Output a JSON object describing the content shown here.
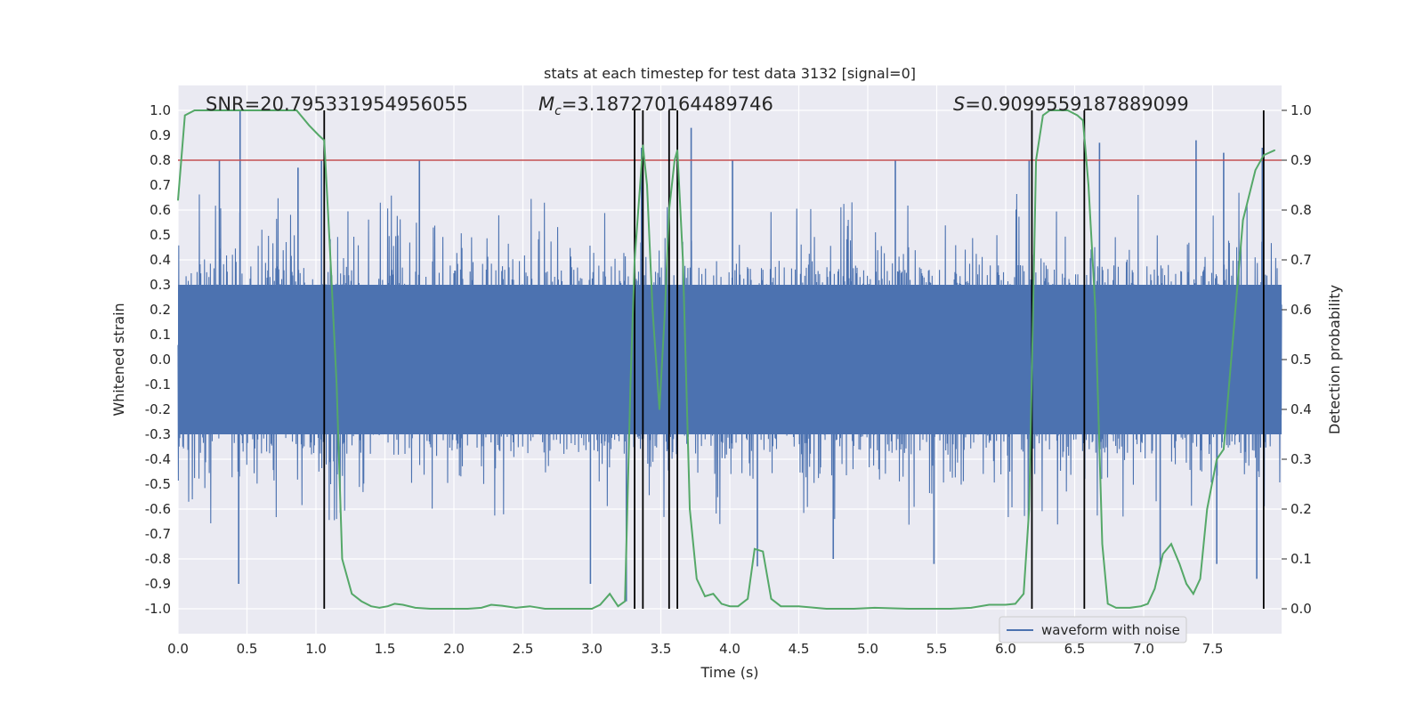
{
  "chart_data": {
    "type": "line",
    "title": "stats at each timestep for test data 3132 [signal=0]",
    "xlabel": "Time (s)",
    "ylabel": "Whitened strain",
    "y2label": "Detection probability",
    "xlim": [
      0,
      8
    ],
    "ylim": [
      -1.1,
      1.1
    ],
    "y2lim": [
      -0.05,
      1.05
    ],
    "xticks": [
      "0.0",
      "0.5",
      "1.0",
      "1.5",
      "2.0",
      "2.5",
      "3.0",
      "3.5",
      "4.0",
      "4.5",
      "5.0",
      "5.5",
      "6.0",
      "6.5",
      "7.0",
      "7.5"
    ],
    "yticks": [
      "-1.0",
      "-0.9",
      "-0.8",
      "-0.7",
      "-0.6",
      "-0.5",
      "-0.4",
      "-0.3",
      "-0.2",
      "-0.1",
      "0.0",
      "0.1",
      "0.2",
      "0.3",
      "0.4",
      "0.5",
      "0.6",
      "0.7",
      "0.8",
      "0.9",
      "1.0"
    ],
    "y2ticks": [
      "0.0",
      "0.1",
      "0.2",
      "0.3",
      "0.4",
      "0.5",
      "0.6",
      "0.7",
      "0.8",
      "0.9",
      "1.0"
    ],
    "grid": true,
    "legend": {
      "entries": [
        "waveform with noise"
      ],
      "placement": "lower-right"
    },
    "annotations": {
      "snr": "SNR=20.795331954956055",
      "mc_prefix": "M",
      "mc_sub": "c",
      "mc_value": "=3.187270164489746",
      "s_prefix": "S",
      "s_value": "=0.9099559187889099"
    },
    "threshold": {
      "axis": "detection probability",
      "value": 0.9
    },
    "vertical_markers": [
      1.06,
      3.31,
      3.37,
      3.56,
      3.62,
      6.19,
      6.57,
      7.87
    ],
    "series": [
      {
        "name": "waveform with noise",
        "axis": "left",
        "style": "noise band",
        "typical_envelope": [
          -0.4,
          0.4
        ],
        "peak_spikes": [
          [
            0.45,
            1.0
          ],
          [
            0.44,
            -0.9
          ],
          [
            0.3,
            0.8
          ],
          [
            0.87,
            0.77
          ],
          [
            1.04,
            0.8
          ],
          [
            1.75,
            0.8
          ],
          [
            3.36,
            0.85
          ],
          [
            3.72,
            0.93
          ],
          [
            4.02,
            0.8
          ],
          [
            5.2,
            0.8
          ],
          [
            6.17,
            0.8
          ],
          [
            6.68,
            0.87
          ],
          [
            7.38,
            0.88
          ],
          [
            7.58,
            0.83
          ],
          [
            7.86,
            0.85
          ],
          [
            3.25,
            -0.97
          ],
          [
            2.99,
            -0.9
          ],
          [
            4.2,
            -0.83
          ],
          [
            4.75,
            -0.8
          ],
          [
            5.48,
            -0.82
          ],
          [
            7.12,
            -0.83
          ],
          [
            7.53,
            -0.82
          ],
          [
            7.82,
            -0.88
          ]
        ]
      },
      {
        "name": "",
        "axis": "right",
        "color": "#55a868",
        "points": [
          [
            0.0,
            0.82
          ],
          [
            0.05,
            0.99
          ],
          [
            0.12,
            1.0
          ],
          [
            0.5,
            1.0
          ],
          [
            0.86,
            1.0
          ],
          [
            0.95,
            0.97
          ],
          [
            1.02,
            0.95
          ],
          [
            1.06,
            0.94
          ],
          [
            1.1,
            0.73
          ],
          [
            1.15,
            0.45
          ],
          [
            1.19,
            0.1
          ],
          [
            1.26,
            0.03
          ],
          [
            1.33,
            0.015
          ],
          [
            1.4,
            0.005
          ],
          [
            1.46,
            0.002
          ],
          [
            1.52,
            0.005
          ],
          [
            1.57,
            0.01
          ],
          [
            1.63,
            0.008
          ],
          [
            1.72,
            0.002
          ],
          [
            1.83,
            0.0
          ],
          [
            1.95,
            0.0
          ],
          [
            2.1,
            0.0
          ],
          [
            2.2,
            0.002
          ],
          [
            2.27,
            0.008
          ],
          [
            2.35,
            0.006
          ],
          [
            2.45,
            0.002
          ],
          [
            2.55,
            0.005
          ],
          [
            2.66,
            0.0
          ],
          [
            2.8,
            0.0
          ],
          [
            3.0,
            0.0
          ],
          [
            3.06,
            0.008
          ],
          [
            3.13,
            0.03
          ],
          [
            3.19,
            0.005
          ],
          [
            3.24,
            0.015
          ],
          [
            3.28,
            0.45
          ],
          [
            3.31,
            0.7
          ],
          [
            3.35,
            0.85
          ],
          [
            3.37,
            0.93
          ],
          [
            3.4,
            0.85
          ],
          [
            3.44,
            0.6
          ],
          [
            3.49,
            0.4
          ],
          [
            3.53,
            0.6
          ],
          [
            3.56,
            0.8
          ],
          [
            3.6,
            0.9
          ],
          [
            3.62,
            0.92
          ],
          [
            3.66,
            0.7
          ],
          [
            3.71,
            0.2
          ],
          [
            3.76,
            0.06
          ],
          [
            3.82,
            0.025
          ],
          [
            3.88,
            0.03
          ],
          [
            3.94,
            0.01
          ],
          [
            4.0,
            0.005
          ],
          [
            4.06,
            0.005
          ],
          [
            4.13,
            0.02
          ],
          [
            4.18,
            0.12
          ],
          [
            4.24,
            0.115
          ],
          [
            4.3,
            0.02
          ],
          [
            4.37,
            0.005
          ],
          [
            4.5,
            0.005
          ],
          [
            4.7,
            0.0
          ],
          [
            4.9,
            0.0
          ],
          [
            5.05,
            0.002
          ],
          [
            5.3,
            0.0
          ],
          [
            5.6,
            0.0
          ],
          [
            5.75,
            0.002
          ],
          [
            5.88,
            0.008
          ],
          [
            6.0,
            0.008
          ],
          [
            6.07,
            0.01
          ],
          [
            6.13,
            0.03
          ],
          [
            6.17,
            0.2
          ],
          [
            6.22,
            0.9
          ],
          [
            6.27,
            0.99
          ],
          [
            6.32,
            1.0
          ],
          [
            6.45,
            1.0
          ],
          [
            6.52,
            0.99
          ],
          [
            6.56,
            0.98
          ],
          [
            6.6,
            0.85
          ],
          [
            6.65,
            0.6
          ],
          [
            6.7,
            0.13
          ],
          [
            6.74,
            0.01
          ],
          [
            6.8,
            0.002
          ],
          [
            6.9,
            0.002
          ],
          [
            6.98,
            0.005
          ],
          [
            7.03,
            0.01
          ],
          [
            7.08,
            0.04
          ],
          [
            7.14,
            0.11
          ],
          [
            7.2,
            0.13
          ],
          [
            7.26,
            0.09
          ],
          [
            7.31,
            0.05
          ],
          [
            7.36,
            0.03
          ],
          [
            7.41,
            0.06
          ],
          [
            7.46,
            0.2
          ],
          [
            7.53,
            0.3
          ],
          [
            7.58,
            0.32
          ],
          [
            7.65,
            0.55
          ],
          [
            7.72,
            0.78
          ],
          [
            7.81,
            0.88
          ],
          [
            7.87,
            0.91
          ],
          [
            7.95,
            0.92
          ]
        ]
      }
    ]
  }
}
